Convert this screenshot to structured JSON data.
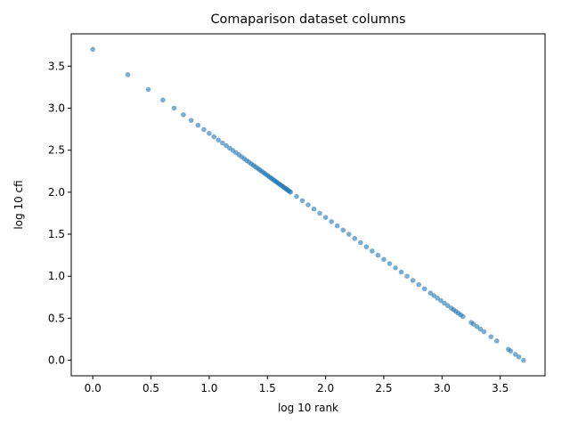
{
  "chart_data": {
    "type": "scatter",
    "title": "Comaparison dataset columns",
    "xlabel": "log 10 rank",
    "ylabel": "log 10 cfi",
    "xlim": [
      -0.185,
      3.885
    ],
    "ylim": [
      -0.185,
      3.885
    ],
    "xticks": [
      "0.0",
      "0.5",
      "1.0",
      "1.5",
      "2.0",
      "2.5",
      "3.0",
      "3.5"
    ],
    "yticks": [
      "0.0",
      "0.5",
      "1.0",
      "1.5",
      "2.0",
      "2.5",
      "3.0",
      "3.5"
    ],
    "grid": false,
    "legend": "none",
    "marker_color": "#1f77b4",
    "relation": "y = 3.7 - x",
    "x": [
      0.0,
      0.301,
      0.477,
      0.602,
      0.699,
      0.778,
      0.845,
      0.903,
      0.954,
      1.0,
      1.041,
      1.079,
      1.114,
      1.146,
      1.176,
      1.204,
      1.23,
      1.255,
      1.279,
      1.301,
      1.322,
      1.342,
      1.362,
      1.38,
      1.398,
      1.415,
      1.431,
      1.447,
      1.462,
      1.477,
      1.491,
      1.505,
      1.519,
      1.531,
      1.544,
      1.556,
      1.568,
      1.58,
      1.591,
      1.602,
      1.613,
      1.623,
      1.633,
      1.643,
      1.653,
      1.663,
      1.672,
      1.681,
      1.69,
      1.699,
      1.75,
      1.8,
      1.85,
      1.9,
      1.95,
      2.0,
      2.05,
      2.1,
      2.15,
      2.2,
      2.25,
      2.3,
      2.35,
      2.4,
      2.45,
      2.5,
      2.55,
      2.6,
      2.65,
      2.7,
      2.75,
      2.8,
      2.85,
      2.9,
      2.93,
      2.96,
      2.99,
      3.02,
      3.05,
      3.08,
      3.1,
      3.12,
      3.14,
      3.16,
      3.18,
      3.25,
      3.27,
      3.3,
      3.33,
      3.36,
      3.42,
      3.47,
      3.57,
      3.59,
      3.63,
      3.66,
      3.7
    ],
    "y": [
      3.7,
      3.399,
      3.223,
      3.098,
      3.001,
      2.922,
      2.855,
      2.797,
      2.746,
      2.7,
      2.659,
      2.621,
      2.586,
      2.554,
      2.524,
      2.496,
      2.47,
      2.445,
      2.421,
      2.399,
      2.378,
      2.358,
      2.338,
      2.32,
      2.302,
      2.285,
      2.269,
      2.253,
      2.238,
      2.223,
      2.209,
      2.195,
      2.181,
      2.169,
      2.156,
      2.144,
      2.132,
      2.12,
      2.109,
      2.098,
      2.087,
      2.077,
      2.067,
      2.057,
      2.047,
      2.037,
      2.028,
      2.019,
      2.01,
      2.001,
      1.95,
      1.9,
      1.85,
      1.8,
      1.75,
      1.7,
      1.65,
      1.6,
      1.55,
      1.5,
      1.45,
      1.4,
      1.35,
      1.3,
      1.25,
      1.2,
      1.15,
      1.1,
      1.05,
      1.0,
      0.95,
      0.9,
      0.85,
      0.8,
      0.77,
      0.74,
      0.71,
      0.68,
      0.65,
      0.62,
      0.6,
      0.58,
      0.56,
      0.54,
      0.52,
      0.45,
      0.43,
      0.4,
      0.37,
      0.34,
      0.28,
      0.23,
      0.13,
      0.11,
      0.07,
      0.04,
      0.0
    ]
  }
}
